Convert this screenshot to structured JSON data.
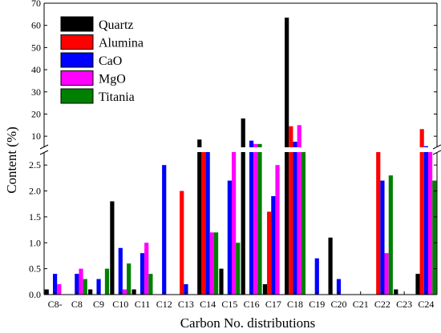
{
  "chart_data": {
    "type": "bar",
    "xlabel": "Carbon No. distributions",
    "ylabel": "Content (%)",
    "categories": [
      "C8-",
      "C8",
      "C9",
      "C10",
      "C11",
      "C12",
      "C13",
      "C14",
      "C15",
      "C16",
      "C17",
      "C18",
      "C19",
      "C20",
      "C21",
      "C22",
      "C23",
      "C24"
    ],
    "y_axis_break": {
      "lower_range": [
        0,
        2.75
      ],
      "upper_range": [
        5,
        70
      ],
      "lower_ticks": [
        0.0,
        0.5,
        1.0,
        1.5,
        2.0,
        2.5
      ],
      "lower_tick_labels": [
        "0.0",
        "0.5",
        "1.0",
        "1.5",
        "2.0",
        "2.5"
      ],
      "upper_ticks": [
        10,
        20,
        30,
        40,
        50,
        60,
        70
      ],
      "upper_tick_labels": [
        "10",
        "20",
        "30",
        "40",
        "50",
        "60",
        "70"
      ]
    },
    "legend_position": "top-left",
    "series": [
      {
        "name": "Quartz",
        "color": "#000000",
        "values": [
          0.1,
          0.0,
          0.1,
          1.8,
          0.1,
          0.0,
          0.0,
          8.5,
          0.5,
          18,
          0.2,
          63.5,
          0.0,
          1.1,
          0.0,
          0.0,
          0.1,
          0.4
        ]
      },
      {
        "name": "Alumina",
        "color": "#ff0000",
        "values": [
          0.0,
          0.0,
          0.0,
          0.0,
          0.0,
          0.0,
          2.0,
          3.5,
          0.0,
          0.0,
          1.6,
          14.5,
          0.0,
          0.0,
          0.0,
          4.0,
          0.0,
          13.2
        ]
      },
      {
        "name": "CaO",
        "color": "#0000ff",
        "values": [
          0.4,
          0.4,
          0.3,
          0.9,
          0.8,
          2.5,
          0.2,
          3.5,
          2.2,
          8.0,
          1.9,
          7.5,
          0.7,
          0.3,
          0.0,
          2.2,
          0.0,
          5.5
        ]
      },
      {
        "name": "MgO",
        "color": "#ff00ff",
        "values": [
          0.2,
          0.5,
          0.0,
          0.1,
          1.0,
          0.0,
          0.0,
          1.2,
          4.0,
          6.5,
          2.5,
          15.0,
          0.0,
          0.0,
          0.0,
          0.8,
          0.0,
          4.5
        ]
      },
      {
        "name": "Titania",
        "color": "#008000",
        "values": [
          0.0,
          0.3,
          0.5,
          0.6,
          0.4,
          0.0,
          0.0,
          1.2,
          1.0,
          6.5,
          0.0,
          3.5,
          0.0,
          0.0,
          0.0,
          2.3,
          0.0,
          2.2
        ]
      }
    ]
  }
}
